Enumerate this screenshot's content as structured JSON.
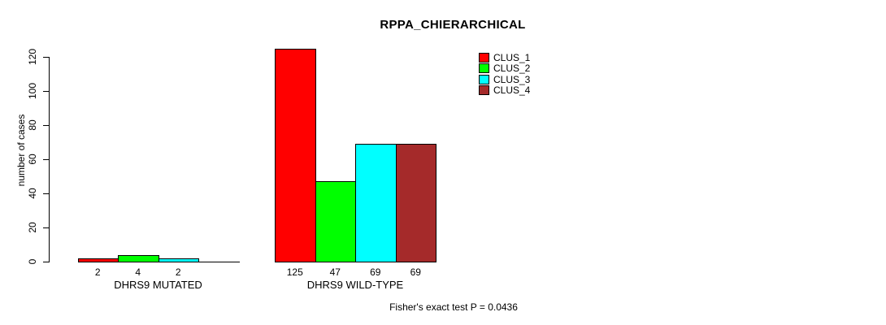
{
  "chart_data": {
    "type": "bar",
    "title": "RPPA_CHIERARCHICAL",
    "ylabel": "number of cases",
    "xlabel": "",
    "yticks": [
      0,
      20,
      40,
      60,
      80,
      100,
      120
    ],
    "ylim": [
      0,
      125
    ],
    "grid": false,
    "background": "#ffffff",
    "categories": [
      "DHRS9 MUTATED",
      "DHRS9 WILD-TYPE"
    ],
    "series": [
      {
        "name": "CLUS_1",
        "color": "#ff0000",
        "values": [
          2,
          125
        ]
      },
      {
        "name": "CLUS_2",
        "color": "#00ff00",
        "values": [
          4,
          47
        ]
      },
      {
        "name": "CLUS_3",
        "color": "#00ffff",
        "values": [
          2,
          69
        ]
      },
      {
        "name": "CLUS_4",
        "color": "#a52a2a",
        "values": [
          0,
          69
        ]
      }
    ],
    "bar_value_labels": {
      "DHRS9 MUTATED": [
        "2",
        "4",
        "2"
      ],
      "DHRS9 WILD-TYPE": [
        "125",
        "47",
        "69",
        "69"
      ]
    },
    "legend": {
      "position": "top-right",
      "entries": [
        "CLUS_1",
        "CLUS_2",
        "CLUS_3",
        "CLUS_4"
      ]
    },
    "annotation": "Fisher's exact test P = 0.0436"
  }
}
